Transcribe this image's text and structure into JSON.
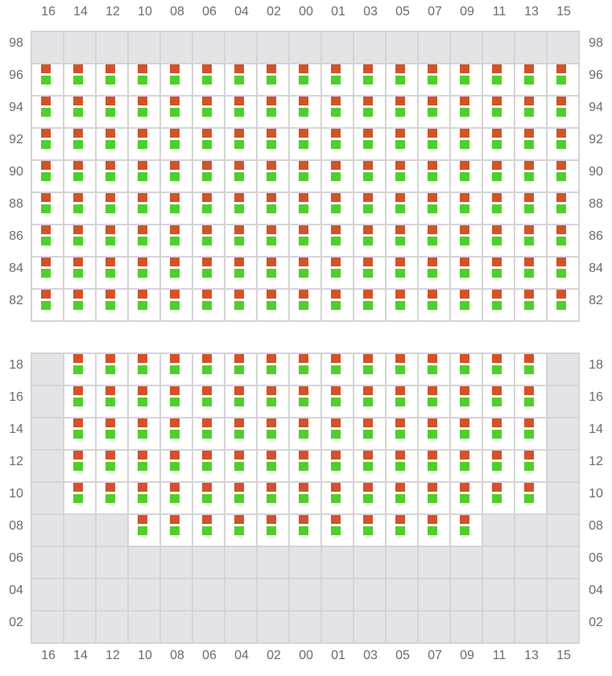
{
  "columns": [
    "16",
    "14",
    "12",
    "10",
    "08",
    "06",
    "04",
    "02",
    "00",
    "01",
    "03",
    "05",
    "07",
    "09",
    "11",
    "13",
    "15"
  ],
  "colors": {
    "slot_top": "#d2522a",
    "slot_bottom": "#4fcf2a",
    "disabled": "#e4e4e7",
    "grid": "#d4d4d8"
  },
  "panels": [
    {
      "rows": [
        {
          "label": "98",
          "active": []
        },
        {
          "label": "96",
          "active": "all"
        },
        {
          "label": "94",
          "active": "all"
        },
        {
          "label": "92",
          "active": "all"
        },
        {
          "label": "90",
          "active": "all"
        },
        {
          "label": "88",
          "active": "all"
        },
        {
          "label": "86",
          "active": "all"
        },
        {
          "label": "84",
          "active": "all"
        },
        {
          "label": "82",
          "active": "all"
        }
      ]
    },
    {
      "rows": [
        {
          "label": "18",
          "active": [
            "14",
            "12",
            "10",
            "08",
            "06",
            "04",
            "02",
            "00",
            "01",
            "03",
            "05",
            "07",
            "09",
            "11",
            "13"
          ]
        },
        {
          "label": "16",
          "active": [
            "14",
            "12",
            "10",
            "08",
            "06",
            "04",
            "02",
            "00",
            "01",
            "03",
            "05",
            "07",
            "09",
            "11",
            "13"
          ]
        },
        {
          "label": "14",
          "active": [
            "14",
            "12",
            "10",
            "08",
            "06",
            "04",
            "02",
            "00",
            "01",
            "03",
            "05",
            "07",
            "09",
            "11",
            "13"
          ]
        },
        {
          "label": "12",
          "active": [
            "14",
            "12",
            "10",
            "08",
            "06",
            "04",
            "02",
            "00",
            "01",
            "03",
            "05",
            "07",
            "09",
            "11",
            "13"
          ]
        },
        {
          "label": "10",
          "active": [
            "14",
            "12",
            "10",
            "08",
            "06",
            "04",
            "02",
            "00",
            "01",
            "03",
            "05",
            "07",
            "09",
            "11",
            "13"
          ]
        },
        {
          "label": "08",
          "active": [
            "10",
            "08",
            "06",
            "04",
            "02",
            "00",
            "01",
            "03",
            "05",
            "07",
            "09"
          ]
        },
        {
          "label": "06",
          "active": []
        },
        {
          "label": "04",
          "active": []
        },
        {
          "label": "02",
          "active": []
        }
      ]
    }
  ]
}
